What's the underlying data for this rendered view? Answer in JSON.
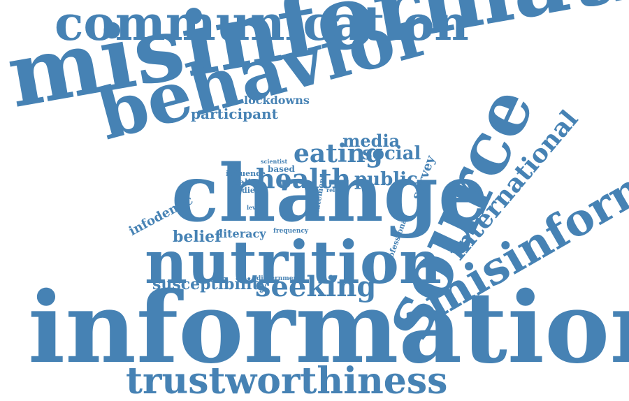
{
  "cloud": {
    "color": "#4682b4",
    "words": [
      "communication",
      "misinformation",
      "behavior",
      "change",
      "nutrition",
      "information",
      "trustworthiness",
      "source",
      "misinformed",
      "international",
      "eating",
      "health",
      "media",
      "social",
      "public",
      "survey",
      "seeking",
      "susceptibility",
      "belief",
      "literacy",
      "infodemic",
      "participant",
      "lockdowns",
      "quality",
      "influence",
      "based",
      "diet",
      "level",
      "scientist",
      "related",
      "statement",
      "professional",
      "frequency",
      "discernment"
    ]
  }
}
